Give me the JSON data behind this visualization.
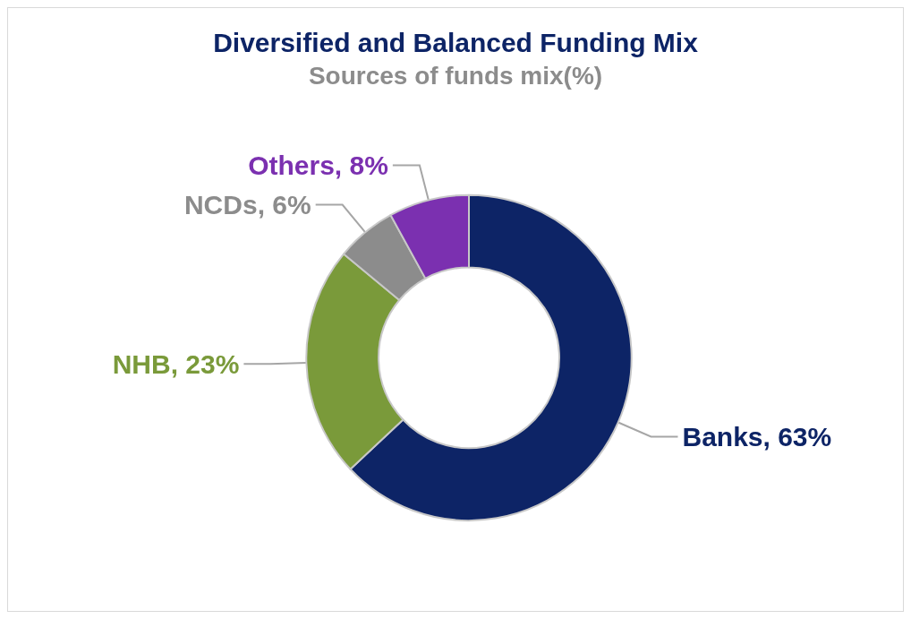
{
  "chart_data": {
    "type": "donut",
    "title": "Diversified and Balanced Funding Mix",
    "subtitle": "Sources of funds mix(%)",
    "categories": [
      "Banks",
      "NHB",
      "NCDs",
      "Others"
    ],
    "values": [
      63,
      23,
      6,
      8
    ],
    "value_labels": [
      "63%",
      "23%",
      "6%",
      "8%"
    ],
    "colors": [
      "#0d2466",
      "#7a9a3a",
      "#8c8c8c",
      "#7b30b0"
    ]
  }
}
